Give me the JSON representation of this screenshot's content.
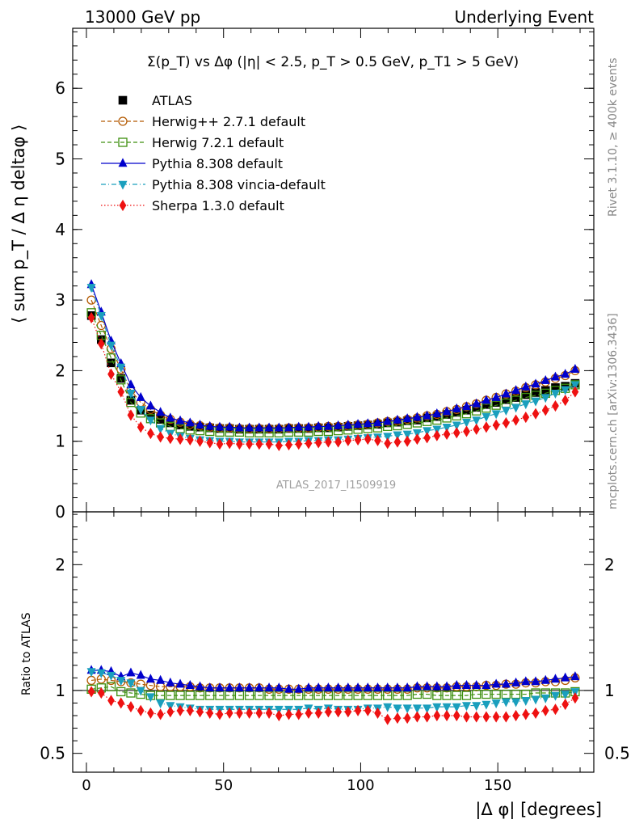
{
  "header": {
    "left": "13000 GeV pp",
    "right": "Underlying Event"
  },
  "side_labels": {
    "rivet": "Rivet 3.1.10, ≥ 400k events",
    "mcplots": "mcplots.cern.ch [arXiv:1306.3436]"
  },
  "chart_data": [
    {
      "type": "scatter",
      "title": "Σ(p_T) vs Δφ (|η| < 2.5, p_T > 0.5 GeV, p_T1 > 5 GeV)",
      "ylabel": "⟨ sum p_T / Δ η deltaφ ⟩",
      "xlabel": "",
      "xlim": [
        -5,
        185
      ],
      "ylim": [
        0,
        6.85
      ],
      "yticks": [
        0,
        1,
        2,
        3,
        4,
        5,
        6
      ],
      "grid": false,
      "legend_position": "top-left",
      "watermark": "ATLAS_2017_I1509919",
      "x": [
        1.8,
        5.4,
        9,
        12.6,
        16.2,
        19.8,
        23.4,
        27,
        30.6,
        34.2,
        37.8,
        41.4,
        45,
        48.6,
        52.2,
        55.8,
        59.4,
        63,
        66.6,
        70.2,
        73.8,
        77.4,
        81,
        84.6,
        88.2,
        91.8,
        95.4,
        99,
        102.6,
        106.2,
        109.8,
        113.4,
        117,
        120.6,
        124.2,
        127.8,
        131.4,
        135,
        138.6,
        142.2,
        145.8,
        149.4,
        153,
        156.6,
        160.2,
        163.8,
        167.4,
        171,
        174.6,
        178.2
      ],
      "series": [
        {
          "name": "ATLAS",
          "color": "#000000",
          "marker": "square-filled",
          "line": "none",
          "values": [
            2.78,
            2.44,
            2.11,
            1.89,
            1.58,
            1.44,
            1.37,
            1.31,
            1.26,
            1.23,
            1.21,
            1.2,
            1.19,
            1.18,
            1.18,
            1.17,
            1.17,
            1.17,
            1.17,
            1.17,
            1.18,
            1.18,
            1.18,
            1.19,
            1.19,
            1.2,
            1.21,
            1.22,
            1.23,
            1.24,
            1.26,
            1.27,
            1.29,
            1.3,
            1.33,
            1.35,
            1.38,
            1.41,
            1.44,
            1.48,
            1.52,
            1.55,
            1.59,
            1.62,
            1.66,
            1.69,
            1.72,
            1.76,
            1.78,
            1.82
          ]
        },
        {
          "name": "Herwig++ 2.7.1 default",
          "color": "#b35900",
          "marker": "circle-open",
          "line": "dashed",
          "values": [
            3.0,
            2.64,
            2.31,
            2.02,
            1.72,
            1.55,
            1.45,
            1.37,
            1.31,
            1.27,
            1.24,
            1.22,
            1.2,
            1.19,
            1.19,
            1.18,
            1.18,
            1.18,
            1.18,
            1.18,
            1.19,
            1.19,
            1.19,
            1.2,
            1.21,
            1.21,
            1.22,
            1.23,
            1.24,
            1.26,
            1.28,
            1.29,
            1.31,
            1.33,
            1.36,
            1.38,
            1.42,
            1.45,
            1.49,
            1.53,
            1.58,
            1.62,
            1.67,
            1.71,
            1.76,
            1.8,
            1.84,
            1.89,
            1.93,
            2.0
          ]
        },
        {
          "name": "Herwig 7.2.1 default",
          "color": "#3d8f0e",
          "marker": "square-open",
          "line": "dashed",
          "values": [
            2.82,
            2.5,
            2.18,
            1.87,
            1.55,
            1.4,
            1.32,
            1.26,
            1.21,
            1.18,
            1.16,
            1.15,
            1.14,
            1.13,
            1.13,
            1.13,
            1.12,
            1.12,
            1.12,
            1.12,
            1.13,
            1.13,
            1.13,
            1.14,
            1.14,
            1.15,
            1.16,
            1.17,
            1.18,
            1.19,
            1.21,
            1.22,
            1.24,
            1.26,
            1.28,
            1.3,
            1.33,
            1.36,
            1.39,
            1.43,
            1.47,
            1.51,
            1.54,
            1.58,
            1.62,
            1.65,
            1.68,
            1.72,
            1.75,
            1.8
          ]
        },
        {
          "name": "Pythia 8.308 default",
          "color": "#0000cc",
          "marker": "triangle-up-filled",
          "line": "solid",
          "values": [
            3.22,
            2.83,
            2.42,
            2.1,
            1.8,
            1.62,
            1.5,
            1.41,
            1.33,
            1.29,
            1.26,
            1.23,
            1.21,
            1.2,
            1.2,
            1.19,
            1.19,
            1.19,
            1.19,
            1.19,
            1.19,
            1.2,
            1.2,
            1.21,
            1.21,
            1.22,
            1.23,
            1.24,
            1.25,
            1.26,
            1.28,
            1.3,
            1.32,
            1.34,
            1.36,
            1.39,
            1.42,
            1.46,
            1.49,
            1.53,
            1.58,
            1.62,
            1.67,
            1.72,
            1.77,
            1.81,
            1.86,
            1.91,
            1.95,
            2.02
          ]
        },
        {
          "name": "Pythia 8.308 vincia-default",
          "color": "#1a9fbd",
          "marker": "triangle-down-filled",
          "line": "dashdot",
          "values": [
            3.18,
            2.78,
            2.36,
            2.05,
            1.68,
            1.45,
            1.3,
            1.18,
            1.11,
            1.07,
            1.04,
            1.02,
            1.01,
            1.0,
            1.0,
            0.99,
            0.99,
            0.99,
            0.99,
            0.99,
            1.0,
            1.0,
            1.01,
            1.01,
            1.02,
            1.02,
            1.03,
            1.04,
            1.05,
            1.06,
            1.07,
            1.09,
            1.1,
            1.12,
            1.15,
            1.17,
            1.2,
            1.23,
            1.27,
            1.3,
            1.35,
            1.39,
            1.44,
            1.48,
            1.53,
            1.57,
            1.62,
            1.68,
            1.73,
            1.8
          ]
        },
        {
          "name": "Sherpa 1.3.0 default",
          "color": "#ee1111",
          "marker": "diamond-filled",
          "line": "dotted",
          "values": [
            2.75,
            2.38,
            1.95,
            1.7,
            1.37,
            1.2,
            1.11,
            1.06,
            1.04,
            1.03,
            1.02,
            1.0,
            0.98,
            0.96,
            0.97,
            0.96,
            0.96,
            0.96,
            0.96,
            0.94,
            0.95,
            0.96,
            0.97,
            0.98,
            0.99,
            0.99,
            1.01,
            1.02,
            1.03,
            1.01,
            0.97,
            0.99,
            1.0,
            1.03,
            1.05,
            1.08,
            1.1,
            1.12,
            1.14,
            1.17,
            1.2,
            1.23,
            1.26,
            1.3,
            1.34,
            1.39,
            1.44,
            1.5,
            1.58,
            1.7
          ]
        }
      ]
    },
    {
      "type": "scatter",
      "title": "",
      "ylabel": "Ratio to ATLAS",
      "xlabel": "|Δ φ| [degrees]",
      "xlim": [
        -5,
        185
      ],
      "ylim": [
        0.35,
        2.42
      ],
      "yticks": [
        0.5,
        1,
        2
      ],
      "xticks": [
        0,
        50,
        100,
        150
      ],
      "grid": false,
      "reference_line": 1.0,
      "x": [
        1.8,
        5.4,
        9,
        12.6,
        16.2,
        19.8,
        23.4,
        27,
        30.6,
        34.2,
        37.8,
        41.4,
        45,
        48.6,
        52.2,
        55.8,
        59.4,
        63,
        66.6,
        70.2,
        73.8,
        77.4,
        81,
        84.6,
        88.2,
        91.8,
        95.4,
        99,
        102.6,
        106.2,
        109.8,
        113.4,
        117,
        120.6,
        124.2,
        127.8,
        131.4,
        135,
        138.6,
        142.2,
        145.8,
        149.4,
        153,
        156.6,
        160.2,
        163.8,
        167.4,
        171,
        174.6,
        178.2
      ],
      "series": [
        {
          "name": "Herwig++ 2.7.1 default",
          "color": "#b35900",
          "marker": "circle-open",
          "line": "dashed",
          "values": [
            1.08,
            1.09,
            1.08,
            1.07,
            1.06,
            1.05,
            1.04,
            1.03,
            1.03,
            1.03,
            1.03,
            1.02,
            1.02,
            1.02,
            1.02,
            1.02,
            1.02,
            1.02,
            1.01,
            1.01,
            1.01,
            1.01,
            1.01,
            1.01,
            1.01,
            1.01,
            1.01,
            1.01,
            1.01,
            1.01,
            1.01,
            1.01,
            1.01,
            1.02,
            1.02,
            1.02,
            1.02,
            1.03,
            1.03,
            1.03,
            1.04,
            1.04,
            1.05,
            1.05,
            1.06,
            1.06,
            1.07,
            1.07,
            1.08,
            1.1
          ]
        },
        {
          "name": "Herwig 7.2.1 default",
          "color": "#3d8f0e",
          "marker": "square-open",
          "line": "dashed",
          "values": [
            1.01,
            1.02,
            1.03,
            0.99,
            0.98,
            0.97,
            0.96,
            0.96,
            0.96,
            0.96,
            0.96,
            0.96,
            0.96,
            0.96,
            0.96,
            0.96,
            0.96,
            0.96,
            0.96,
            0.96,
            0.96,
            0.96,
            0.96,
            0.96,
            0.96,
            0.96,
            0.96,
            0.96,
            0.96,
            0.96,
            0.96,
            0.96,
            0.96,
            0.97,
            0.97,
            0.96,
            0.96,
            0.96,
            0.96,
            0.97,
            0.97,
            0.97,
            0.97,
            0.97,
            0.97,
            0.98,
            0.98,
            0.98,
            0.98,
            0.99
          ]
        },
        {
          "name": "Pythia 8.308 default",
          "color": "#0000cc",
          "marker": "triangle-up-filled",
          "line": "solid",
          "values": [
            1.16,
            1.16,
            1.15,
            1.11,
            1.14,
            1.12,
            1.09,
            1.08,
            1.06,
            1.05,
            1.04,
            1.03,
            1.02,
            1.02,
            1.02,
            1.02,
            1.02,
            1.02,
            1.02,
            1.02,
            1.01,
            1.01,
            1.02,
            1.02,
            1.02,
            1.02,
            1.02,
            1.02,
            1.02,
            1.02,
            1.02,
            1.02,
            1.02,
            1.03,
            1.03,
            1.03,
            1.03,
            1.04,
            1.04,
            1.04,
            1.04,
            1.05,
            1.05,
            1.06,
            1.07,
            1.07,
            1.08,
            1.09,
            1.1,
            1.11
          ]
        },
        {
          "name": "Pythia 8.308 vincia-default",
          "color": "#1a9fbd",
          "marker": "triangle-down-filled",
          "line": "dashdot",
          "values": [
            1.15,
            1.14,
            1.12,
            1.08,
            1.06,
            1.0,
            0.95,
            0.9,
            0.88,
            0.87,
            0.86,
            0.85,
            0.85,
            0.85,
            0.85,
            0.85,
            0.85,
            0.85,
            0.85,
            0.85,
            0.85,
            0.85,
            0.86,
            0.85,
            0.86,
            0.85,
            0.85,
            0.85,
            0.86,
            0.86,
            0.87,
            0.86,
            0.86,
            0.86,
            0.86,
            0.87,
            0.87,
            0.87,
            0.88,
            0.88,
            0.89,
            0.9,
            0.91,
            0.91,
            0.92,
            0.93,
            0.94,
            0.96,
            0.97,
            0.99
          ]
        },
        {
          "name": "Sherpa 1.3.0 default",
          "color": "#ee1111",
          "marker": "diamond-filled",
          "line": "dotted",
          "values": [
            0.99,
            0.98,
            0.92,
            0.9,
            0.87,
            0.84,
            0.82,
            0.81,
            0.83,
            0.84,
            0.84,
            0.83,
            0.82,
            0.81,
            0.82,
            0.82,
            0.82,
            0.82,
            0.82,
            0.8,
            0.81,
            0.81,
            0.82,
            0.82,
            0.83,
            0.83,
            0.83,
            0.84,
            0.84,
            0.82,
            0.77,
            0.78,
            0.78,
            0.79,
            0.79,
            0.8,
            0.8,
            0.8,
            0.79,
            0.79,
            0.79,
            0.79,
            0.79,
            0.8,
            0.81,
            0.82,
            0.84,
            0.85,
            0.89,
            0.94
          ]
        }
      ]
    }
  ]
}
